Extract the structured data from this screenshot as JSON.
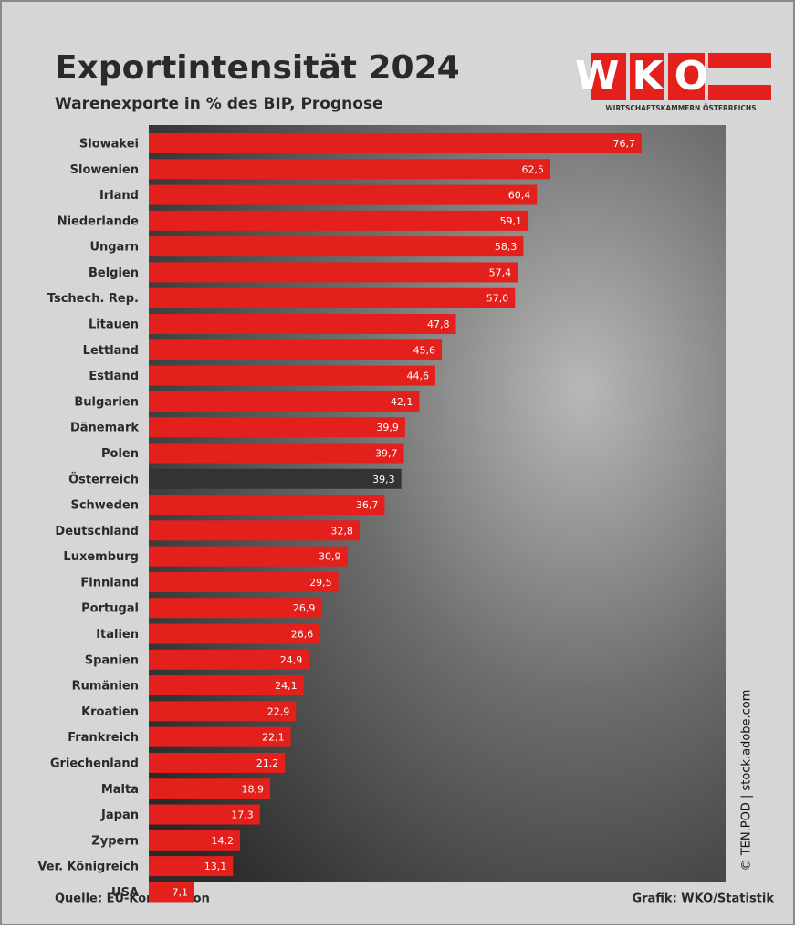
{
  "chart_data": {
    "type": "barh",
    "title": "Exportintensität 2024",
    "subtitle": "Warenexporte in % des BIP, Prognose",
    "logo_text": "WKO",
    "logo_subtitle": "WIRTSCHAFTSKAMMERN ÖSTERREICHS",
    "source": "Quelle: EU-Kommission",
    "graphic": "Grafik: WKO/Statistik",
    "credit": "© TEN.POD | stock.adobe.com",
    "categories": [
      "Slowakei",
      "Slowenien",
      "Irland",
      "Niederlande",
      "Ungarn",
      "Belgien",
      "Tschech. Rep.",
      "Litauen",
      "Lettland",
      "Estland",
      "Bulgarien",
      "Dänemark",
      "Polen",
      "Österreich",
      "Schweden",
      "Deutschland",
      "Luxemburg",
      "Finnland",
      "Portugal",
      "Italien",
      "Spanien",
      "Rumänien",
      "Kroatien",
      "Frankreich",
      "Griechenland",
      "Malta",
      "Japan",
      "Zypern",
      "Ver. Königreich",
      "USA"
    ],
    "values": [
      76.7,
      62.5,
      60.4,
      59.1,
      58.3,
      57.4,
      57.0,
      47.8,
      45.6,
      44.6,
      42.1,
      39.9,
      39.7,
      39.3,
      36.7,
      32.8,
      30.9,
      29.5,
      26.9,
      26.6,
      24.9,
      24.1,
      22.9,
      22.1,
      21.2,
      18.9,
      17.3,
      14.2,
      13.1,
      7.1
    ],
    "value_labels": [
      "76,7",
      "62,5",
      "60,4",
      "59,1",
      "58,3",
      "57,4",
      "57,0",
      "47,8",
      "45,6",
      "44,6",
      "42,1",
      "39,9",
      "39,7",
      "39,3",
      "36,7",
      "32,8",
      "30,9",
      "29,5",
      "26,9",
      "26,6",
      "24,9",
      "24,1",
      "22,9",
      "22,1",
      "21,2",
      "18,9",
      "17,3",
      "14,2",
      "13,1",
      "7,1"
    ],
    "colors": [
      "#e3201b",
      "#e3201b",
      "#e3201b",
      "#e3201b",
      "#e3201b",
      "#e3201b",
      "#e3201b",
      "#e3201b",
      "#e3201b",
      "#e3201b",
      "#e3201b",
      "#e3201b",
      "#e3201b",
      "#333333",
      "#e3201b",
      "#e3201b",
      "#e3201b",
      "#e3201b",
      "#e3201b",
      "#e3201b",
      "#e3201b",
      "#e3201b",
      "#e3201b",
      "#e3201b",
      "#e3201b",
      "#e3201b",
      "#e3201b",
      "#e3201b",
      "#e3201b",
      "#e3201b"
    ]
  }
}
